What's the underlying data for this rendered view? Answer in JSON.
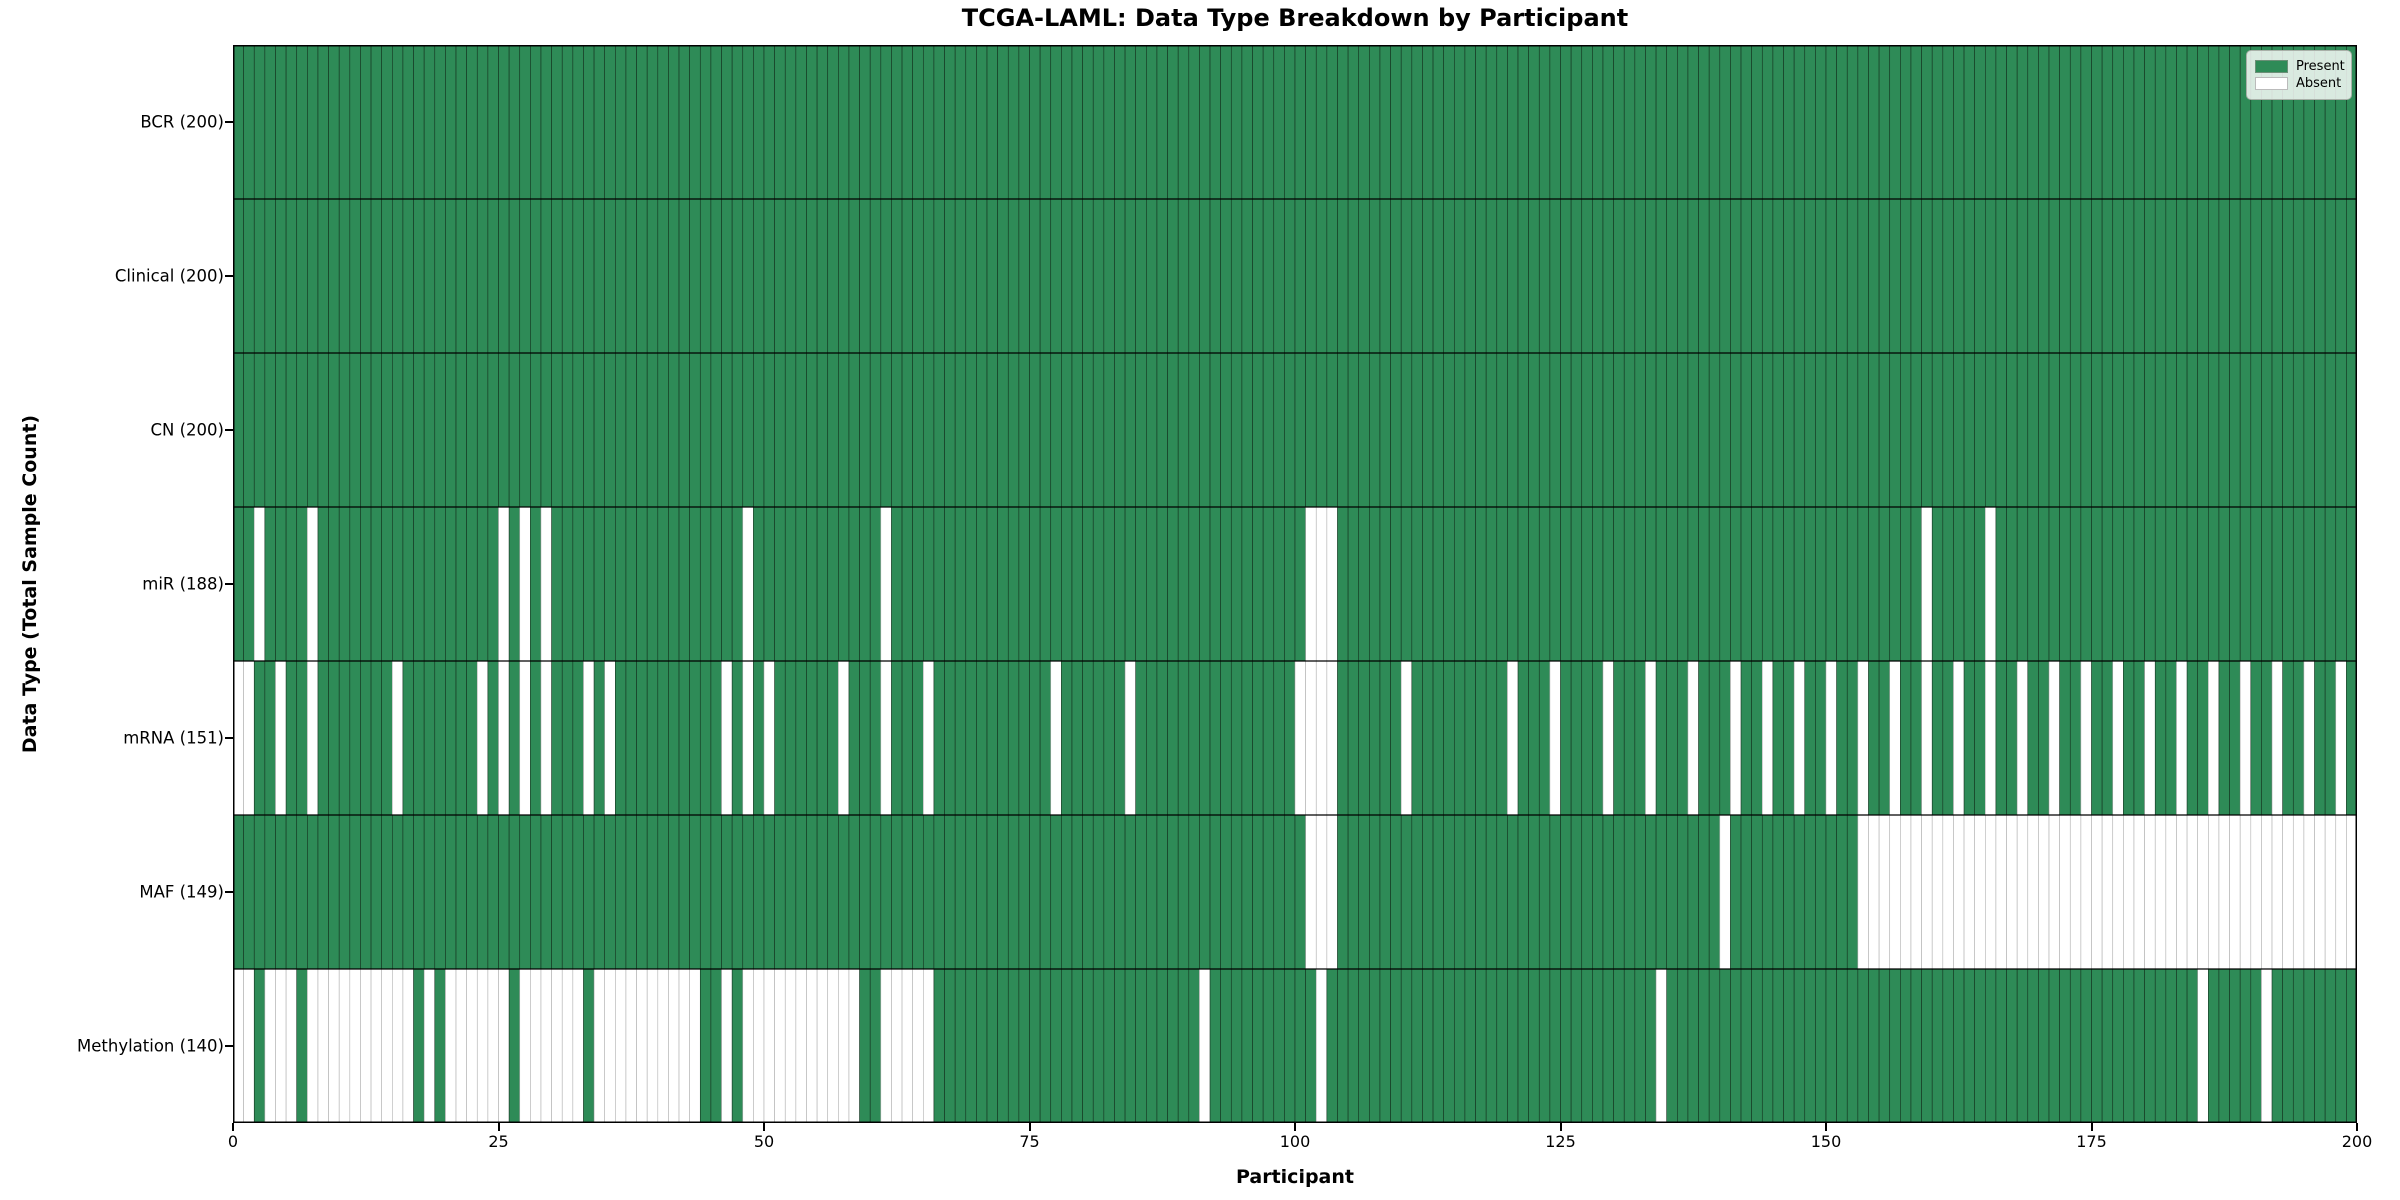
{
  "chart": {
    "title": "TCGA-LAML: Data Type Breakdown by Participant",
    "xlabel": "Participant",
    "ylabel": "Data Type (Total Sample Count)"
  },
  "legend": {
    "present": "Present",
    "absent": "Absent"
  },
  "colors": {
    "present": "#2e8b57",
    "absent": "#ffffff",
    "present_cell_edge": "#14321f",
    "absent_cell_edge": "#b0b0b0",
    "row_divider": "#000000",
    "plot_border": "#000000"
  },
  "chart_data": {
    "type": "heatmap",
    "title": "TCGA-LAML: Data Type Breakdown by Participant",
    "xlabel": "Participant",
    "ylabel": "Data Type (Total Sample Count)",
    "x_axis": {
      "min": 0,
      "max": 200,
      "ticks": [
        0,
        25,
        50,
        75,
        100,
        125,
        150,
        175,
        200
      ]
    },
    "n_participants": 200,
    "legend_entries": [
      "Present",
      "Absent"
    ],
    "rows": [
      {
        "label": "BCR (200)",
        "data_type": "BCR",
        "present_count": 200,
        "absent_participants": []
      },
      {
        "label": "Clinical (200)",
        "data_type": "Clinical",
        "present_count": 200,
        "absent_participants": []
      },
      {
        "label": "CN (200)",
        "data_type": "CN",
        "present_count": 200,
        "absent_participants": []
      },
      {
        "label": "miR (188)",
        "data_type": "miR",
        "present_count": 188,
        "absent_participants": [
          2,
          7,
          25,
          27,
          29,
          48,
          61,
          101,
          102,
          103,
          159,
          165
        ]
      },
      {
        "label": "mRNA (151)",
        "data_type": "mRNA",
        "present_count": 151,
        "absent_participants": [
          0,
          1,
          4,
          7,
          15,
          23,
          25,
          27,
          29,
          33,
          35,
          46,
          48,
          50,
          57,
          61,
          65,
          77,
          84,
          100,
          101,
          102,
          103,
          110,
          120,
          124,
          129,
          133,
          137,
          141,
          144,
          147,
          150,
          153,
          156,
          159,
          162,
          165,
          168,
          171,
          174,
          177,
          180,
          183,
          186,
          189,
          192,
          195,
          198
        ]
      },
      {
        "label": "MAF (149)",
        "data_type": "MAF",
        "present_count": 149,
        "absent_participants": [
          101,
          102,
          103,
          140,
          153,
          154,
          155,
          156,
          157,
          158,
          159,
          160,
          161,
          162,
          163,
          164,
          165,
          166,
          167,
          168,
          169,
          170,
          171,
          172,
          173,
          174,
          175,
          176,
          177,
          178,
          179,
          180,
          181,
          182,
          183,
          184,
          185,
          186,
          187,
          188,
          189,
          190,
          191,
          192,
          193,
          194,
          195,
          196,
          197,
          198,
          199
        ]
      },
      {
        "label": "Methylation (140)",
        "data_type": "Methylation",
        "present_count": 140,
        "absent_participants": [
          0,
          1,
          3,
          4,
          5,
          7,
          8,
          9,
          10,
          11,
          12,
          13,
          14,
          15,
          16,
          18,
          20,
          21,
          22,
          23,
          24,
          25,
          27,
          28,
          29,
          30,
          31,
          32,
          34,
          35,
          36,
          37,
          38,
          39,
          40,
          41,
          42,
          43,
          46,
          48,
          49,
          50,
          51,
          52,
          53,
          54,
          55,
          56,
          57,
          58,
          61,
          62,
          63,
          64,
          65,
          91,
          102,
          134,
          185,
          191
        ]
      }
    ]
  }
}
